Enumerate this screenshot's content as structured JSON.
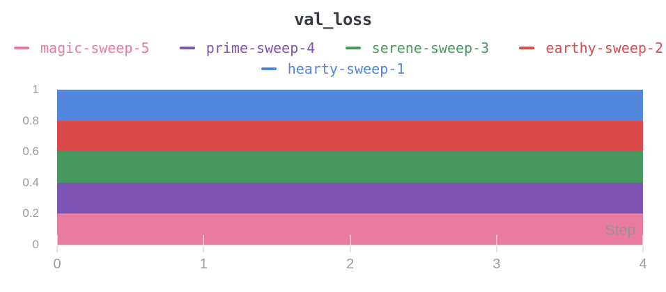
{
  "panel": {
    "title": "val_loss"
  },
  "legend": {
    "rows": [
      [
        0,
        1,
        2,
        3
      ],
      [
        4
      ]
    ]
  },
  "colors": {
    "background": "#FFFFFF",
    "title_text": "#363C44",
    "axis_text": "#9A9CA1",
    "step_label_text": "#8F929A",
    "tick_mark": "#E4E4E8"
  },
  "chart_data": {
    "type": "area",
    "stacked": true,
    "title": "val_loss",
    "xlabel": "Step",
    "ylabel": "",
    "xlim": [
      0,
      4
    ],
    "ylim": [
      0,
      1
    ],
    "x_ticks": [
      0,
      1,
      2,
      3,
      4
    ],
    "x_tick_labels": [
      "0",
      "1",
      "2",
      "3",
      "4"
    ],
    "y_ticks": [
      0,
      0.2,
      0.4,
      0.6,
      0.8,
      1
    ],
    "y_tick_labels": [
      "0",
      "0.2",
      "0.4",
      "0.6",
      "0.8",
      "1"
    ],
    "grid": false,
    "legend_position": "top",
    "series": [
      {
        "name": "magic-sweep-5",
        "color": "#E87B9F",
        "x": [
          0,
          4
        ],
        "values": [
          0.2,
          0.2
        ],
        "band": [
          0.0,
          0.2
        ]
      },
      {
        "name": "prime-sweep-4",
        "color": "#7D54B2",
        "x": [
          0,
          4
        ],
        "values": [
          0.2,
          0.2
        ],
        "band": [
          0.2,
          0.4
        ]
      },
      {
        "name": "serene-sweep-3",
        "color": "#479A5F",
        "x": [
          0,
          4
        ],
        "values": [
          0.2,
          0.2
        ],
        "band": [
          0.4,
          0.6
        ]
      },
      {
        "name": "earthy-sweep-2",
        "color": "#DA4C4C",
        "x": [
          0,
          4
        ],
        "values": [
          0.2,
          0.2
        ],
        "band": [
          0.6,
          0.8
        ]
      },
      {
        "name": "hearty-sweep-1",
        "color": "#5387DD",
        "x": [
          0,
          4
        ],
        "values": [
          0.2,
          0.2
        ],
        "band": [
          0.8,
          1.0
        ]
      }
    ]
  }
}
